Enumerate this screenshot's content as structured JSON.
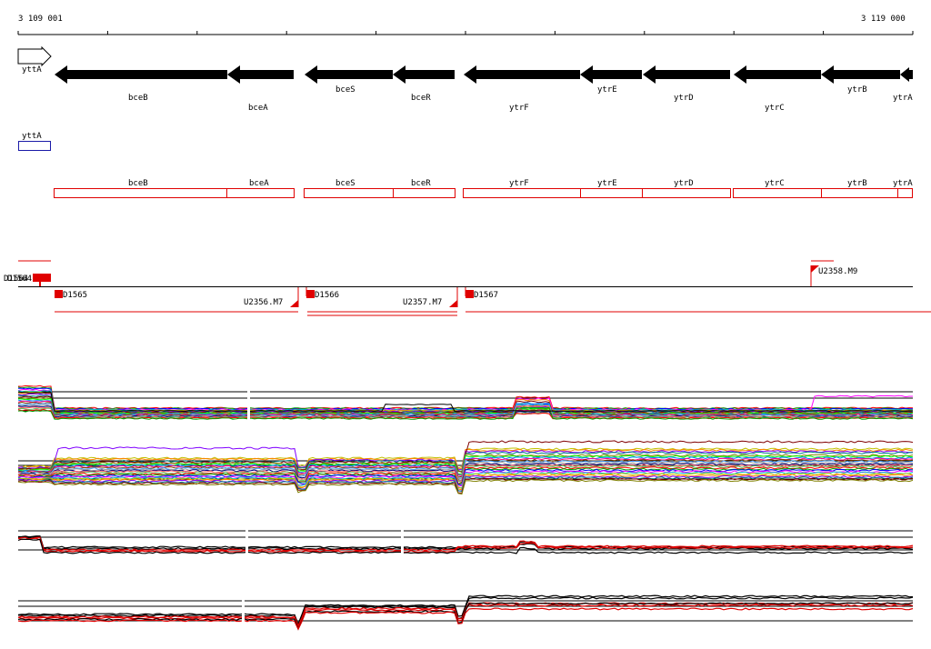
{
  "ruler": {
    "start_label": "3 109 001",
    "end_label": "3 119 000"
  },
  "colors": {
    "gene_arrow": "#000000",
    "gene_box": "#e00000",
    "ytta_box": "#1a1aa8",
    "promoter": "#e00000",
    "axis": "#000000"
  },
  "strand_plus_genes": [
    {
      "name": "yttA"
    }
  ],
  "strand_minus_genes": [
    {
      "name": "bceB"
    },
    {
      "name": "bceA"
    },
    {
      "name": "bceS"
    },
    {
      "name": "bceR"
    },
    {
      "name": "ytrF"
    },
    {
      "name": "ytrE"
    },
    {
      "name": "ytrD"
    },
    {
      "name": "ytrC"
    },
    {
      "name": "ytrB"
    },
    {
      "name": "ytrA"
    }
  ],
  "operon_boxes": {
    "plus": [
      {
        "name": "yttA"
      }
    ],
    "minus": [
      {
        "name": "bceB"
      },
      {
        "name": "bceA"
      },
      {
        "name": "bceS"
      },
      {
        "name": "bceR"
      },
      {
        "name": "ytrF"
      },
      {
        "name": "ytrE"
      },
      {
        "name": "ytrD"
      },
      {
        "name": "ytrC"
      },
      {
        "name": "ytrB"
      },
      {
        "name": "ytrA"
      }
    ]
  },
  "regulatory_elements": {
    "top_left_overlap_label": "D1564",
    "items": [
      {
        "name": "D1565"
      },
      {
        "name": "U2356.M7"
      },
      {
        "name": "D1566"
      },
      {
        "name": "U2357.M7"
      },
      {
        "name": "D1567"
      },
      {
        "name": "U2358.M9"
      }
    ]
  },
  "expression_tracks": [
    {
      "id": "track-1",
      "style": "multicolor"
    },
    {
      "id": "track-2",
      "style": "multicolor"
    },
    {
      "id": "track-3",
      "style": "black-red"
    },
    {
      "id": "track-4",
      "style": "black-red"
    }
  ]
}
